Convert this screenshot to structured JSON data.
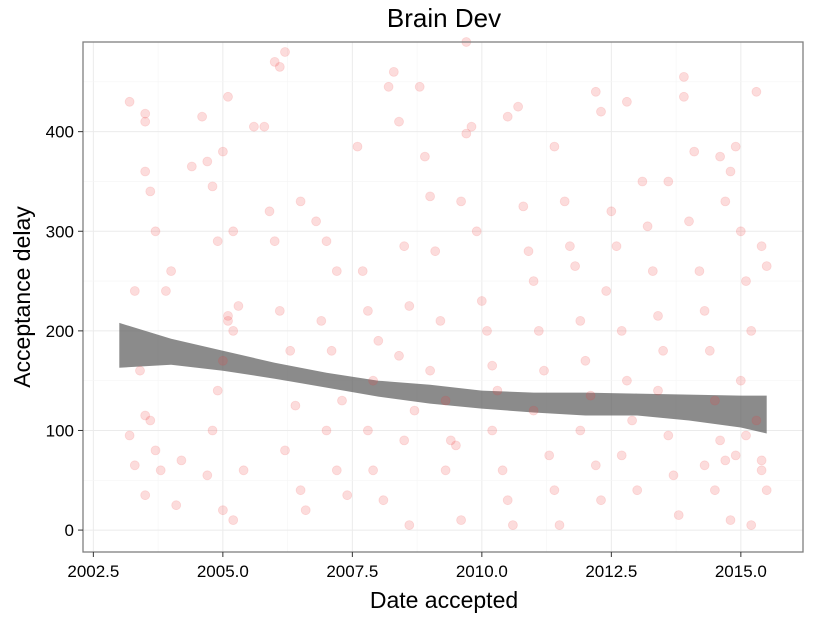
{
  "chart_data": {
    "type": "scatter",
    "title": "Brain Dev",
    "xlabel": "Date accepted",
    "ylabel": "Acceptance delay",
    "xlim": [
      2002.3,
      2016.2
    ],
    "ylim": [
      -22,
      490
    ],
    "x_ticks": [
      2002.5,
      2005.0,
      2007.5,
      2010.0,
      2012.5,
      2015.0
    ],
    "x_tick_labels": [
      "2002.5",
      "2005.0",
      "2007.5",
      "2010.0",
      "2012.5",
      "2015.0"
    ],
    "y_ticks": [
      0,
      100,
      200,
      300,
      400
    ],
    "y_tick_labels": [
      "0",
      "100",
      "200",
      "300",
      "400"
    ],
    "grid": true,
    "point_color": "#f03c3c",
    "point_opacity": 0.18,
    "band_color": "#5a5a5a",
    "points": [
      [
        2003.2,
        430
      ],
      [
        2003.5,
        418
      ],
      [
        2003.5,
        410
      ],
      [
        2003.6,
        340
      ],
      [
        2003.5,
        360
      ],
      [
        2003.7,
        300
      ],
      [
        2003.9,
        240
      ],
      [
        2004.0,
        260
      ],
      [
        2003.3,
        240
      ],
      [
        2003.4,
        160
      ],
      [
        2003.5,
        115
      ],
      [
        2003.6,
        110
      ],
      [
        2003.7,
        80
      ],
      [
        2003.8,
        60
      ],
      [
        2003.2,
        95
      ],
      [
        2003.3,
        65
      ],
      [
        2003.5,
        35
      ],
      [
        2004.1,
        25
      ],
      [
        2004.2,
        70
      ],
      [
        2004.4,
        365
      ],
      [
        2004.6,
        415
      ],
      [
        2004.7,
        370
      ],
      [
        2004.8,
        345
      ],
      [
        2004.9,
        290
      ],
      [
        2005.0,
        380
      ],
      [
        2005.1,
        435
      ],
      [
        2005.2,
        300
      ],
      [
        2005.3,
        225
      ],
      [
        2005.1,
        210
      ],
      [
        2005.1,
        215
      ],
      [
        2005.2,
        200
      ],
      [
        2005.0,
        170
      ],
      [
        2004.9,
        140
      ],
      [
        2004.8,
        100
      ],
      [
        2004.7,
        55
      ],
      [
        2005.0,
        20
      ],
      [
        2005.2,
        10
      ],
      [
        2005.4,
        60
      ],
      [
        2005.6,
        405
      ],
      [
        2005.8,
        405
      ],
      [
        2005.9,
        320
      ],
      [
        2006.0,
        470
      ],
      [
        2006.1,
        465
      ],
      [
        2006.2,
        480
      ],
      [
        2006.0,
        290
      ],
      [
        2006.1,
        220
      ],
      [
        2006.3,
        180
      ],
      [
        2006.4,
        125
      ],
      [
        2006.2,
        80
      ],
      [
        2006.5,
        40
      ],
      [
        2006.6,
        20
      ],
      [
        2006.5,
        330
      ],
      [
        2006.8,
        310
      ],
      [
        2007.0,
        290
      ],
      [
        2007.2,
        260
      ],
      [
        2006.9,
        210
      ],
      [
        2007.1,
        180
      ],
      [
        2007.3,
        130
      ],
      [
        2007.0,
        100
      ],
      [
        2007.2,
        60
      ],
      [
        2007.4,
        35
      ],
      [
        2007.6,
        385
      ],
      [
        2007.7,
        260
      ],
      [
        2007.8,
        220
      ],
      [
        2008.0,
        190
      ],
      [
        2007.9,
        150
      ],
      [
        2007.8,
        100
      ],
      [
        2007.9,
        60
      ],
      [
        2008.1,
        30
      ],
      [
        2008.2,
        445
      ],
      [
        2008.3,
        460
      ],
      [
        2008.4,
        410
      ],
      [
        2008.5,
        285
      ],
      [
        2008.6,
        225
      ],
      [
        2008.4,
        175
      ],
      [
        2008.7,
        120
      ],
      [
        2008.5,
        90
      ],
      [
        2008.6,
        5
      ],
      [
        2008.8,
        445
      ],
      [
        2008.9,
        375
      ],
      [
        2009.0,
        335
      ],
      [
        2009.1,
        280
      ],
      [
        2009.2,
        210
      ],
      [
        2009.0,
        160
      ],
      [
        2009.3,
        130
      ],
      [
        2009.4,
        90
      ],
      [
        2009.5,
        85
      ],
      [
        2009.3,
        60
      ],
      [
        2009.6,
        10
      ],
      [
        2009.7,
        490
      ],
      [
        2009.8,
        405
      ],
      [
        2009.7,
        398
      ],
      [
        2009.6,
        330
      ],
      [
        2009.9,
        300
      ],
      [
        2010.0,
        230
      ],
      [
        2010.1,
        200
      ],
      [
        2010.2,
        165
      ],
      [
        2010.3,
        140
      ],
      [
        2010.2,
        100
      ],
      [
        2010.4,
        60
      ],
      [
        2010.5,
        30
      ],
      [
        2010.6,
        5
      ],
      [
        2010.5,
        415
      ],
      [
        2010.7,
        425
      ],
      [
        2010.8,
        325
      ],
      [
        2010.9,
        280
      ],
      [
        2011.0,
        250
      ],
      [
        2011.1,
        200
      ],
      [
        2011.2,
        160
      ],
      [
        2011.0,
        120
      ],
      [
        2011.3,
        75
      ],
      [
        2011.4,
        40
      ],
      [
        2011.5,
        5
      ],
      [
        2011.4,
        385
      ],
      [
        2011.6,
        330
      ],
      [
        2011.7,
        285
      ],
      [
        2011.8,
        265
      ],
      [
        2011.9,
        210
      ],
      [
        2012.0,
        170
      ],
      [
        2012.1,
        135
      ],
      [
        2011.9,
        100
      ],
      [
        2012.2,
        65
      ],
      [
        2012.3,
        30
      ],
      [
        2012.2,
        440
      ],
      [
        2012.3,
        420
      ],
      [
        2012.5,
        320
      ],
      [
        2012.6,
        285
      ],
      [
        2012.4,
        240
      ],
      [
        2012.7,
        200
      ],
      [
        2012.8,
        150
      ],
      [
        2012.9,
        110
      ],
      [
        2012.7,
        75
      ],
      [
        2013.0,
        40
      ],
      [
        2012.8,
        430
      ],
      [
        2013.1,
        350
      ],
      [
        2013.2,
        305
      ],
      [
        2013.3,
        260
      ],
      [
        2013.4,
        215
      ],
      [
        2013.5,
        180
      ],
      [
        2013.4,
        140
      ],
      [
        2013.6,
        95
      ],
      [
        2013.7,
        55
      ],
      [
        2013.8,
        15
      ],
      [
        2013.6,
        350
      ],
      [
        2013.9,
        455
      ],
      [
        2013.9,
        435
      ],
      [
        2014.0,
        310
      ],
      [
        2014.1,
        380
      ],
      [
        2014.2,
        260
      ],
      [
        2014.3,
        220
      ],
      [
        2014.4,
        180
      ],
      [
        2014.5,
        130
      ],
      [
        2014.6,
        90
      ],
      [
        2014.7,
        70
      ],
      [
        2014.5,
        40
      ],
      [
        2014.8,
        10
      ],
      [
        2014.6,
        375
      ],
      [
        2014.7,
        330
      ],
      [
        2014.8,
        360
      ],
      [
        2014.9,
        385
      ],
      [
        2015.0,
        300
      ],
      [
        2015.1,
        250
      ],
      [
        2015.2,
        200
      ],
      [
        2015.0,
        150
      ],
      [
        2015.3,
        110
      ],
      [
        2015.4,
        70
      ],
      [
        2015.5,
        40
      ],
      [
        2015.3,
        440
      ],
      [
        2015.4,
        285
      ],
      [
        2015.5,
        265
      ],
      [
        2015.2,
        5
      ],
      [
        2015.4,
        60
      ],
      [
        2015.1,
        95
      ],
      [
        2014.9,
        75
      ],
      [
        2014.3,
        65
      ]
    ],
    "smooth_band": {
      "x": [
        2003.0,
        2004.0,
        2005.0,
        2006.0,
        2007.0,
        2008.0,
        2009.0,
        2010.0,
        2011.0,
        2012.0,
        2013.0,
        2014.0,
        2015.0,
        2015.5
      ],
      "upper": [
        208,
        192,
        180,
        168,
        158,
        150,
        146,
        140,
        138,
        138,
        137,
        136,
        135,
        135
      ],
      "lower": [
        163,
        166,
        160,
        152,
        143,
        134,
        127,
        122,
        118,
        115,
        115,
        110,
        103,
        97
      ]
    }
  }
}
